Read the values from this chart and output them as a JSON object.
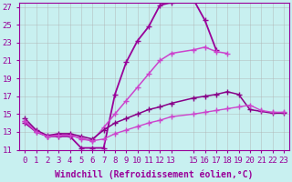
{
  "xlabel": "Windchill (Refroidissement éolien,°C)",
  "background_color": "#c8f0f0",
  "line_color": "#990099",
  "xlim": [
    -0.5,
    23.5
  ],
  "ylim": [
    11,
    27.5
  ],
  "yticks": [
    11,
    13,
    15,
    17,
    19,
    21,
    23,
    25,
    27
  ],
  "xticks": [
    0,
    1,
    2,
    3,
    4,
    5,
    6,
    7,
    8,
    9,
    10,
    11,
    12,
    13,
    15,
    16,
    17,
    18,
    19,
    20,
    21,
    22,
    23
  ],
  "curves": [
    {
      "x": [
        0,
        1,
        2,
        3,
        4,
        5,
        6,
        7,
        8,
        9,
        10,
        11,
        12,
        13,
        15,
        16,
        17
      ],
      "y": [
        14.0,
        13.0,
        12.5,
        12.5,
        12.5,
        11.2,
        11.2,
        11.2,
        17.2,
        20.8,
        23.2,
        24.8,
        27.2,
        27.5,
        27.8,
        25.5,
        22.2
      ],
      "color": "#990099",
      "linewidth": 1.3
    },
    {
      "x": [
        0,
        1,
        2,
        3,
        4,
        5,
        6,
        7,
        8,
        9,
        10,
        11,
        12,
        13,
        15,
        16,
        17,
        18
      ],
      "y": [
        14.2,
        13.1,
        12.5,
        12.7,
        12.7,
        12.2,
        12.0,
        13.5,
        15.0,
        16.5,
        18.0,
        19.5,
        21.0,
        21.8,
        22.2,
        22.5,
        22.0,
        21.8
      ],
      "color": "#cc44cc",
      "linewidth": 1.1
    },
    {
      "x": [
        0,
        1,
        2,
        3,
        4,
        5,
        6,
        7,
        8,
        9,
        10,
        11,
        12,
        13,
        15,
        16,
        17,
        18,
        19,
        20,
        21,
        22,
        23
      ],
      "y": [
        14.5,
        13.2,
        12.6,
        12.8,
        12.8,
        12.5,
        12.2,
        13.2,
        14.0,
        14.5,
        15.0,
        15.5,
        15.8,
        16.2,
        16.8,
        17.0,
        17.2,
        17.5,
        17.2,
        15.5,
        15.3,
        15.1,
        15.1
      ],
      "color": "#880088",
      "linewidth": 1.1
    },
    {
      "x": [
        0,
        1,
        2,
        3,
        4,
        5,
        6,
        7,
        8,
        9,
        10,
        11,
        12,
        13,
        15,
        16,
        17,
        18,
        19,
        20,
        21,
        22,
        23
      ],
      "y": [
        14.2,
        13.0,
        12.5,
        12.6,
        12.6,
        12.3,
        12.0,
        12.2,
        12.8,
        13.2,
        13.6,
        14.0,
        14.3,
        14.7,
        15.0,
        15.2,
        15.4,
        15.6,
        15.8,
        16.0,
        15.4,
        15.2,
        15.2
      ],
      "color": "#cc44cc",
      "linewidth": 1.0
    }
  ],
  "grid_color": "#b0b0b0",
  "grid_alpha": 0.6,
  "font_family": "monospace",
  "tick_fontsize": 6.5,
  "label_fontsize": 7
}
